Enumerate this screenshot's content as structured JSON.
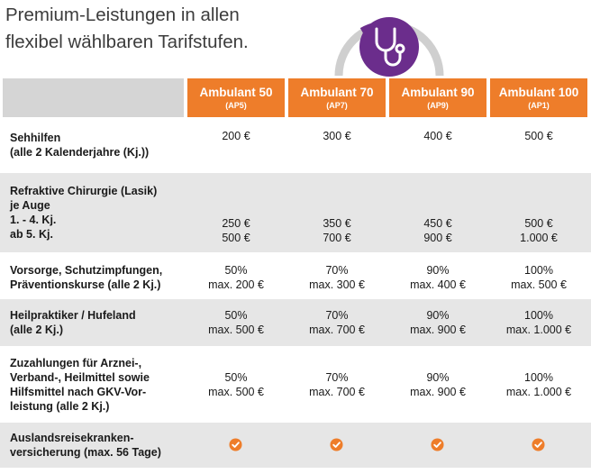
{
  "headline": [
    "Premium-Leistungen in allen",
    "flexibel wählbaren Tarifstufen."
  ],
  "gauge": {
    "icon": "stethoscope-icon",
    "accent": "#6b2d8c",
    "ring_gray": "#cfcfcf",
    "level": 0.3
  },
  "colors": {
    "header_orange": "#ee7d2a",
    "check_orange": "#ee7d2a",
    "row_shade": "#e6e6e6",
    "header_gray": "#d5d5d5"
  },
  "tariffs": [
    {
      "name": "Ambulant 50",
      "code": "(AP5)"
    },
    {
      "name": "Ambulant 70",
      "code": "(AP7)"
    },
    {
      "name": "Ambulant 90",
      "code": "(AP9)"
    },
    {
      "name": "Ambulant 100",
      "code": "(AP1)"
    }
  ],
  "rows": [
    {
      "label": [
        "Sehhilfen",
        "(alle 2 Kalenderjahre (Kj.))"
      ],
      "values": [
        [
          "200 €"
        ],
        [
          "300 €"
        ],
        [
          "400 €"
        ],
        [
          "500 €"
        ]
      ]
    },
    {
      "label": [
        "Refraktive Chirurgie (Lasik)",
        "je Auge",
        "1. - 4. Kj.",
        "ab 5. Kj."
      ],
      "values": [
        [
          "250 €",
          "500 €"
        ],
        [
          "350 €",
          "700 €"
        ],
        [
          "450 €",
          "900 €"
        ],
        [
          "500 €",
          "1.000 €"
        ]
      ]
    },
    {
      "label": [
        "Vorsorge, Schutzimpfungen,",
        "Präventionskurse (alle 2 Kj.)"
      ],
      "values": [
        [
          "50%",
          "max. 200 €"
        ],
        [
          "70%",
          "max. 300 €"
        ],
        [
          "90%",
          "max. 400 €"
        ],
        [
          "100%",
          "max. 500 €"
        ]
      ]
    },
    {
      "label": [
        "Heilpraktiker / Hufeland",
        "(alle 2 Kj.)"
      ],
      "values": [
        [
          "50%",
          "max. 500 €"
        ],
        [
          "70%",
          "max. 700 €"
        ],
        [
          "90%",
          "max. 900 €"
        ],
        [
          "100%",
          "max. 1.000 €"
        ]
      ]
    },
    {
      "label": [
        "Zuzahlungen für Arznei-,",
        "Verband-, Heilmittel sowie",
        "Hilfsmittel nach GKV-Vor-",
        "leistung (alle 2 Kj.)"
      ],
      "values": [
        [
          "50%",
          "max. 500 €"
        ],
        [
          "70%",
          "max. 700 €"
        ],
        [
          "90%",
          "max. 900 €"
        ],
        [
          "100%",
          "max. 1.000 €"
        ]
      ]
    },
    {
      "label": [
        "Auslandsreisekranken-",
        "versicherung (max. 56 Tage)"
      ],
      "values": [
        [],
        [],
        [],
        []
      ],
      "included": [
        true,
        true,
        true,
        true
      ]
    }
  ]
}
